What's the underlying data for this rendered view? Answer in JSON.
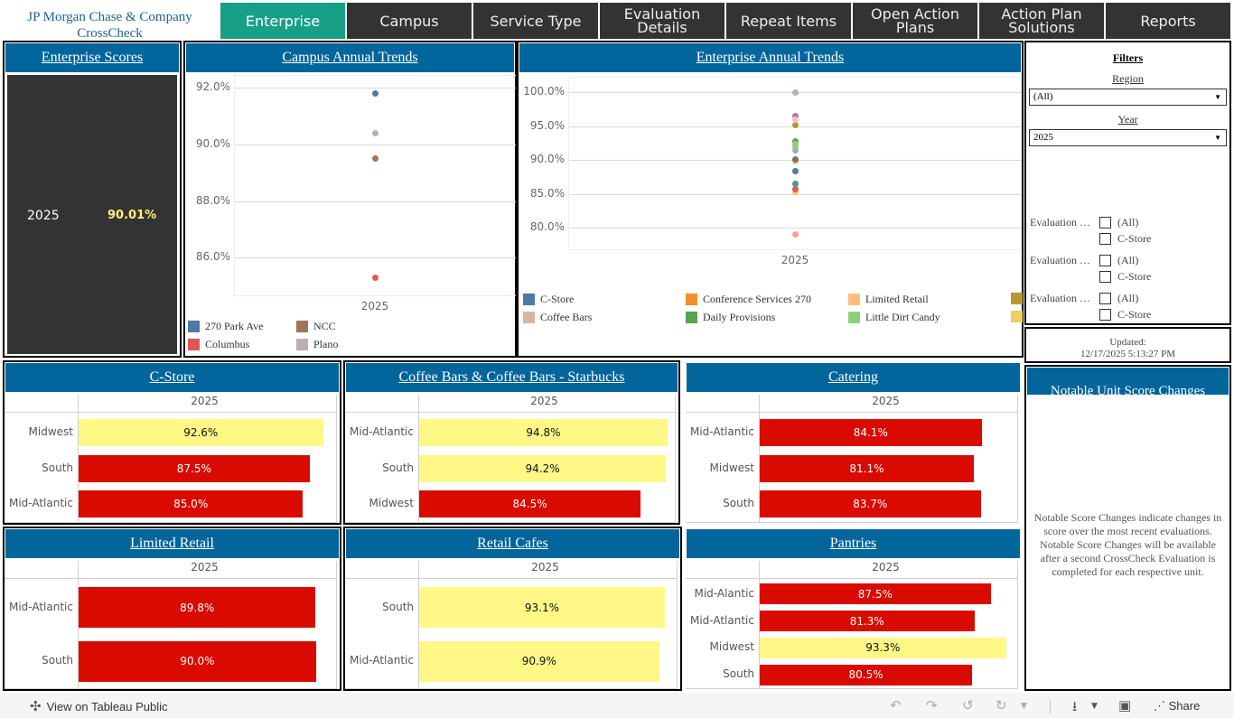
{
  "brand": {
    "line1": "JP Morgan Chase & Company",
    "line2": "CrossCheck"
  },
  "nav": {
    "tabs": [
      {
        "label": "Enterprise",
        "active": true
      },
      {
        "label": "Campus",
        "active": false
      },
      {
        "label": "Service Type",
        "active": false
      },
      {
        "label": "Evaluation\nDetails",
        "active": false
      },
      {
        "label": "Repeat Items",
        "active": false
      },
      {
        "label": "Open Action\nPlans",
        "active": false
      },
      {
        "label": "Action Plan\nSolutions",
        "active": false
      },
      {
        "label": "Reports",
        "active": false
      }
    ]
  },
  "enterprise_scores": {
    "title": "Enterprise Scores",
    "year": "2025",
    "value": "90.01%"
  },
  "colors": {
    "accent_header": "#02659b",
    "active_tab": "#17a086",
    "bar_below_target": "#d90a00",
    "bar_at_target": "#fff886",
    "score_value": "#fff47c"
  },
  "chart_data": [
    {
      "type": "scatter",
      "title": "Campus Annual Trends",
      "categories": [
        "2025"
      ],
      "ylim": [
        84.9,
        92.2
      ],
      "yticks": [
        "92.0%",
        "90.0%",
        "88.0%",
        "86.0%"
      ],
      "ytick_values": [
        92.0,
        90.0,
        88.0,
        86.0
      ],
      "grid": true,
      "legend_position": "bottom",
      "series": [
        {
          "name": "270 Park Ave",
          "color": "#4e79a7",
          "values": [
            91.8
          ]
        },
        {
          "name": "NCC",
          "color": "#9c755f",
          "values": [
            89.5
          ]
        },
        {
          "name": "Columbus",
          "color": "#e15759",
          "values": [
            85.3
          ]
        },
        {
          "name": "Plano",
          "color": "#bab0ac",
          "values": [
            90.4
          ]
        }
      ]
    },
    {
      "type": "scatter",
      "title": "Enterprise Annual Trends",
      "categories": [
        "2025"
      ],
      "ylim": [
        77.8,
        101.2
      ],
      "yticks": [
        "100.0%",
        "95.0%",
        "90.0%",
        "85.0%",
        "80.0%"
      ],
      "ytick_values": [
        100,
        95,
        90,
        85,
        80
      ],
      "grid": true,
      "legend_position": "bottom",
      "series": [
        {
          "name": "C-Store",
          "color": "#4e79a7",
          "values": [
            88.4
          ]
        },
        {
          "name": "Coffee Bars",
          "color": "#d7b5a6",
          "values": [
            92.0
          ]
        },
        {
          "name": "Conference Services 270",
          "color": "#f28e2b",
          "values": [
            89.9
          ]
        },
        {
          "name": "Daily Provisions",
          "color": "#59a14f",
          "values": [
            92.7
          ]
        },
        {
          "name": "Limited Retail",
          "color": "#ffbe7d",
          "values": [
            89.8
          ]
        },
        {
          "name": "Little Dirt Candy",
          "color": "#8cd17d",
          "values": [
            92.4
          ]
        },
        {
          "name": "",
          "color": "#b6992d",
          "values": [
            95.2
          ]
        },
        {
          "name": "",
          "color": "#f1ce63",
          "values": [
            85.3
          ]
        },
        {
          "name": "",
          "color": "#bab0ac",
          "values": [
            100.0
          ]
        },
        {
          "name": "",
          "color": "#b07aa1",
          "values": [
            96.5
          ]
        },
        {
          "name": "",
          "color": "#fabfd2",
          "values": [
            95.9
          ]
        },
        {
          "name": "",
          "color": "#86bcb6",
          "values": [
            91.4
          ]
        },
        {
          "name": "",
          "color": "#79706e",
          "values": [
            90.1
          ]
        },
        {
          "name": "",
          "color": "#499894",
          "values": [
            86.5
          ]
        },
        {
          "name": "",
          "color": "#e15759",
          "values": [
            85.7
          ]
        },
        {
          "name": "",
          "color": "#ff9d9a",
          "values": [
            79.0
          ]
        }
      ]
    },
    {
      "type": "bar",
      "title": "C-Store ",
      "column": "2025",
      "categories": [
        "Midwest",
        "South",
        "Mid-Atlantic"
      ],
      "values": [
        92.6,
        87.5,
        85.0
      ],
      "labels": [
        "92.6%",
        "87.5%",
        "85.0%"
      ],
      "status": [
        "ok",
        "low",
        "low"
      ]
    },
    {
      "type": "bar",
      "title": "Coffee Bars & Coffee Bars - Starbucks",
      "column": "2025",
      "categories": [
        "Mid-Atlantic",
        "South",
        "Midwest"
      ],
      "values": [
        94.8,
        94.2,
        84.5
      ],
      "labels": [
        "94.8%",
        "94.2%",
        "84.5%"
      ],
      "status": [
        "ok",
        "ok",
        "low"
      ]
    },
    {
      "type": "bar",
      "title": "Catering",
      "column": "2025",
      "categories": [
        "Mid-Atlantic",
        "Midwest",
        "South"
      ],
      "values": [
        84.1,
        81.1,
        83.7
      ],
      "labels": [
        "84.1%",
        "81.1%",
        "83.7%"
      ],
      "status": [
        "low",
        "low",
        "low"
      ]
    },
    {
      "type": "bar",
      "title": "Limited Retail",
      "column": "2025",
      "categories": [
        "Mid-Atlantic",
        "South"
      ],
      "values": [
        89.8,
        90.0
      ],
      "labels": [
        "89.8%",
        "90.0%"
      ],
      "status": [
        "low",
        "low"
      ]
    },
    {
      "type": "bar",
      "title": "Retail Cafes",
      "column": "2025",
      "categories": [
        "South",
        "Mid-Atlantic"
      ],
      "values": [
        93.1,
        90.9
      ],
      "labels": [
        "93.1%",
        "90.9%"
      ],
      "status": [
        "ok",
        "ok"
      ]
    },
    {
      "type": "bar",
      "title": "Pantries",
      "column": "2025",
      "categories": [
        "Mid-Alantic",
        "Mid-Atlantic",
        "Midwest",
        "South"
      ],
      "values": [
        87.5,
        81.3,
        93.3,
        80.5
      ],
      "labels": [
        "87.5%",
        "81.3%",
        "93.3%",
        "80.5%"
      ],
      "status": [
        "low",
        "low",
        "ok",
        "low"
      ]
    }
  ],
  "filters": {
    "title": "Filters",
    "region": {
      "label": "Region",
      "value": "(All)"
    },
    "year": {
      "label": "Year",
      "value": "2025"
    },
    "checkbox_groups": [
      {
        "label": "Evaluation …",
        "options": [
          "(All)",
          "C-Store"
        ]
      },
      {
        "label": "Evaluation …",
        "options": [
          "(All)",
          "C-Store"
        ]
      },
      {
        "label": "Evaluation …",
        "options": [
          "(All)",
          "C-Store"
        ]
      }
    ]
  },
  "updated": {
    "label": "Updated:",
    "value": "12/17/2025  5:13:27 PM"
  },
  "notable": {
    "title": "Notable Unit Score Changes",
    "text": "Notable Score Changes indicate changes in score over the most recent evaluations. Notable Score Changes will be available after a second CrossCheck Evaluation is completed for each respective unit."
  },
  "footer": {
    "view_link": "View on Tableau Public",
    "share": "Share"
  }
}
